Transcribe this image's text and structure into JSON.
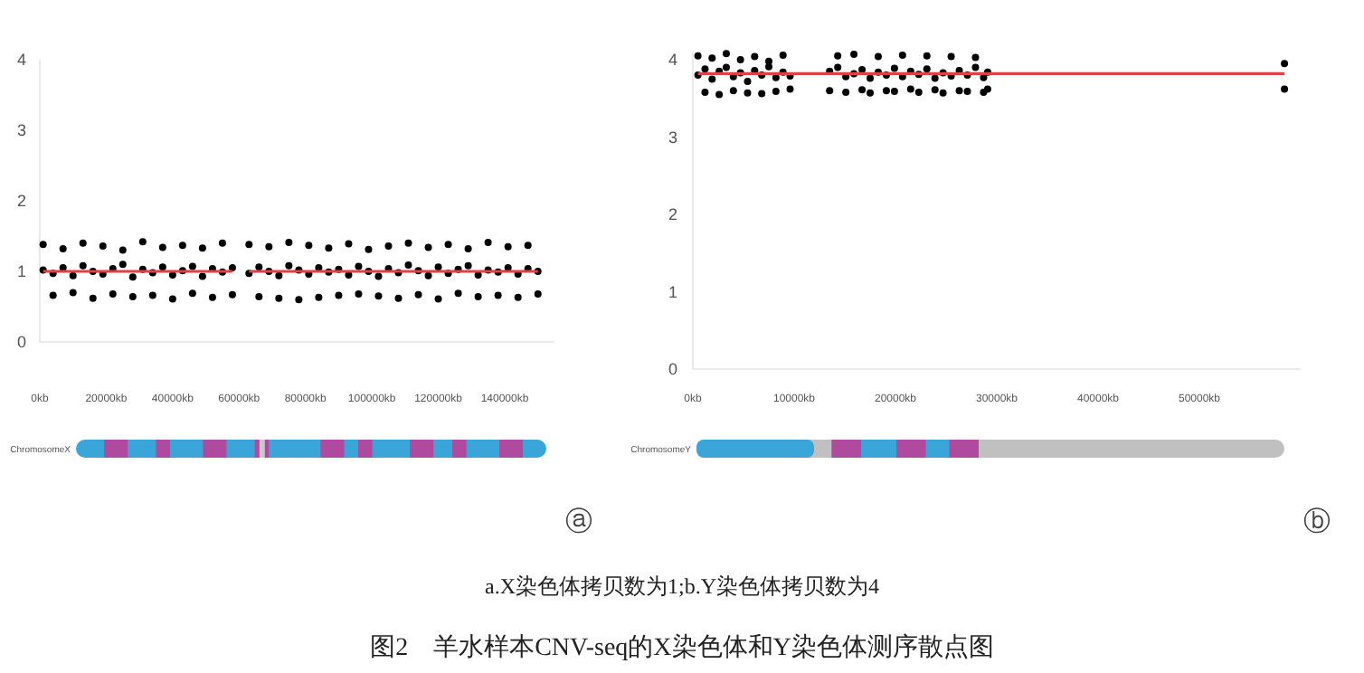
{
  "chart_data": [
    {
      "type": "scatter",
      "xlim": [
        0,
        155000
      ],
      "ylim": [
        0,
        4
      ],
      "xticks": [
        {
          "value": 0,
          "label": "0kb"
        },
        {
          "value": 20000,
          "label": "20000kb"
        },
        {
          "value": 40000,
          "label": "40000kb"
        },
        {
          "value": 60000,
          "label": "60000kb"
        },
        {
          "value": 80000,
          "label": "80000kb"
        },
        {
          "value": 100000,
          "label": "100000kb"
        },
        {
          "value": 120000,
          "label": "120000kb"
        },
        {
          "value": 140000,
          "label": "140000kb"
        }
      ],
      "yticks": [
        0,
        1,
        2,
        3,
        4
      ],
      "annotations": [
        "ChromosomeX",
        "ⓐ"
      ],
      "series": [
        {
          "type": "scatter",
          "marker": "circle",
          "color": "#000000",
          "x": [
            1000,
            1000,
            4000,
            4000,
            7000,
            7000,
            10000,
            10000,
            13000,
            13000,
            16000,
            16000,
            19000,
            19000,
            22000,
            22000,
            25000,
            25000,
            28000,
            28000,
            31000,
            31000,
            34000,
            34000,
            37000,
            37000,
            40000,
            40000,
            43000,
            43000,
            46000,
            46000,
            49000,
            49000,
            52000,
            52000,
            55000,
            55000,
            58000,
            58000,
            63000,
            63000,
            66000,
            66000,
            69000,
            69000,
            72000,
            72000,
            75000,
            75000,
            78000,
            78000,
            81000,
            81000,
            84000,
            84000,
            87000,
            87000,
            90000,
            90000,
            93000,
            93000,
            96000,
            96000,
            99000,
            99000,
            102000,
            102000,
            105000,
            105000,
            108000,
            108000,
            111000,
            111000,
            114000,
            114000,
            117000,
            117000,
            120000,
            120000,
            123000,
            123000,
            126000,
            126000,
            129000,
            129000,
            132000,
            132000,
            135000,
            135000,
            138000,
            138000,
            141000,
            141000,
            144000,
            144000,
            147000,
            147000,
            150000,
            150000
          ],
          "values": [
            1.02,
            1.38,
            0.97,
            0.66,
            1.05,
            1.32,
            0.94,
            0.7,
            1.08,
            1.4,
            1.0,
            0.62,
            0.96,
            1.36,
            1.04,
            0.68,
            1.1,
            1.3,
            0.92,
            0.64,
            1.03,
            1.42,
            0.98,
            0.66,
            1.06,
            1.34,
            0.95,
            0.61,
            1.01,
            1.37,
            1.07,
            0.69,
            0.93,
            1.33,
            1.04,
            0.63,
            0.99,
            1.4,
            1.05,
            0.67,
            0.97,
            1.38,
            1.06,
            0.64,
            1.0,
            1.35,
            0.94,
            0.62,
            1.08,
            1.41,
            1.02,
            0.6,
            0.96,
            1.37,
            1.05,
            0.63,
            0.99,
            1.33,
            1.03,
            0.66,
            0.95,
            1.39,
            1.07,
            0.68,
            1.0,
            1.31,
            0.93,
            0.65,
            1.04,
            1.36,
            0.98,
            0.62,
            1.09,
            1.4,
            1.01,
            0.67,
            0.94,
            1.34,
            1.06,
            0.61,
            0.97,
            1.38,
            1.03,
            0.69,
            1.08,
            1.32,
            0.95,
            0.64,
            1.02,
            1.41,
            0.99,
            0.66,
            1.05,
            1.35,
            0.96,
            0.63,
            1.04,
            1.37,
            1.0,
            0.68
          ]
        },
        {
          "type": "line",
          "marker": "none",
          "color": "#e0404a",
          "x": [
            1000,
            58000
          ],
          "values": [
            1,
            1
          ]
        },
        {
          "type": "line",
          "marker": "none",
          "color": "#e0404a",
          "x": [
            63000,
            150000
          ],
          "values": [
            1,
            1
          ]
        }
      ]
    },
    {
      "type": "scatter",
      "xlim": [
        0,
        60000
      ],
      "ylim": [
        0,
        4.1
      ],
      "xticks": [
        {
          "value": 0,
          "label": "0kb"
        },
        {
          "value": 10000,
          "label": "10000kb"
        },
        {
          "value": 20000,
          "label": "20000kb"
        },
        {
          "value": 30000,
          "label": "30000kb"
        },
        {
          "value": 40000,
          "label": "40000kb"
        },
        {
          "value": 50000,
          "label": "50000kb"
        }
      ],
      "yticks": [
        0,
        1,
        2,
        3,
        4
      ],
      "annotations": [
        "ChromosomeY",
        "ⓑ"
      ],
      "series": [
        {
          "type": "scatter",
          "marker": "circle",
          "color": "#000000",
          "x": [
            500,
            500,
            1200,
            1200,
            1900,
            1900,
            2600,
            2600,
            3300,
            3300,
            4000,
            4000,
            4700,
            4700,
            5400,
            5400,
            6100,
            6100,
            6800,
            6800,
            7500,
            7500,
            8200,
            8200,
            8900,
            8900,
            9600,
            9600,
            13500,
            13500,
            14300,
            14300,
            15100,
            15100,
            15900,
            15900,
            16700,
            16700,
            17500,
            17500,
            18300,
            18300,
            19100,
            19100,
            19900,
            19900,
            20700,
            20700,
            21500,
            21500,
            22300,
            22300,
            23100,
            23100,
            23900,
            23900,
            24700,
            24700,
            25500,
            25500,
            26300,
            26300,
            27100,
            27100,
            27900,
            27900,
            28700,
            28700,
            29100,
            29100,
            58400,
            58400
          ],
          "values": [
            3.8,
            4.05,
            3.88,
            3.58,
            3.75,
            4.02,
            3.85,
            3.55,
            3.9,
            4.08,
            3.78,
            3.6,
            3.83,
            4.0,
            3.72,
            3.57,
            3.86,
            4.04,
            3.8,
            3.56,
            3.91,
            3.98,
            3.77,
            3.59,
            3.84,
            4.06,
            3.79,
            3.62,
            3.85,
            3.6,
            3.9,
            4.05,
            3.78,
            3.58,
            3.82,
            4.07,
            3.87,
            3.61,
            3.76,
            3.57,
            3.84,
            4.04,
            3.8,
            3.6,
            3.89,
            3.59,
            3.78,
            4.06,
            3.85,
            3.62,
            3.81,
            3.58,
            3.88,
            4.05,
            3.76,
            3.61,
            3.83,
            3.57,
            3.79,
            4.04,
            3.86,
            3.6,
            3.8,
            3.59,
            3.9,
            4.03,
            3.77,
            3.58,
            3.84,
            3.62,
            3.95,
            3.62
          ]
        },
        {
          "type": "line",
          "marker": "none",
          "color": "#e0404a",
          "x": [
            500,
            58400
          ],
          "values": [
            3.82,
            3.82
          ]
        }
      ]
    },
    {
      "type": "other",
      "title": "图2　羊水样本CNV-seq的X染色体和Y染色体测序散点图",
      "subtitle": "a.X染色体拷贝数为1;b.Y染色体拷贝数为4"
    }
  ]
}
